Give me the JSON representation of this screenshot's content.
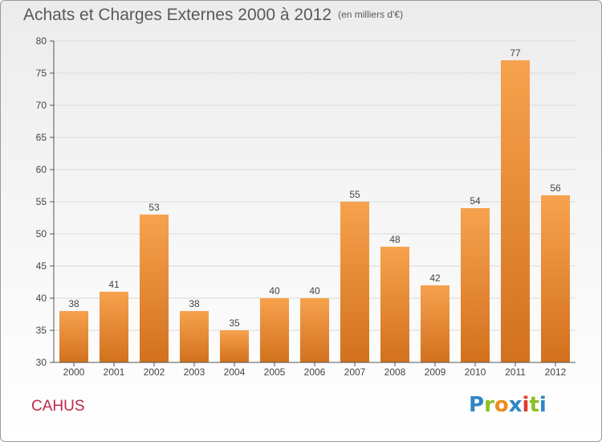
{
  "header": {
    "title": "Achats et Charges Externes 2000 à 2012",
    "unit": "(en milliers d'€)"
  },
  "commune": "CAHUS",
  "logo": {
    "letters": [
      "P",
      "r",
      "o",
      "x",
      "i",
      "t",
      "i"
    ],
    "colors": [
      "#2f86c6",
      "#8cbf26",
      "#f08c1e",
      "#2f86c6",
      "#e23a2e",
      "#8cbf26",
      "#2f86c6"
    ]
  },
  "colors": {
    "bar_top": "#f7a24e",
    "bar_bottom": "#d2711e",
    "axis": "#555555",
    "grid": "#d9d9d9",
    "label": "#444444"
  },
  "chart_data": {
    "type": "bar",
    "categories": [
      "2000",
      "2001",
      "2002",
      "2003",
      "2004",
      "2005",
      "2006",
      "2007",
      "2008",
      "2009",
      "2010",
      "2011",
      "2012"
    ],
    "values": [
      38,
      41,
      53,
      38,
      35,
      40,
      40,
      55,
      48,
      42,
      54,
      77,
      56
    ],
    "ylim": [
      30,
      80
    ],
    "yticks": [
      30,
      35,
      40,
      45,
      50,
      55,
      60,
      65,
      70,
      75,
      80
    ],
    "grid": true
  }
}
